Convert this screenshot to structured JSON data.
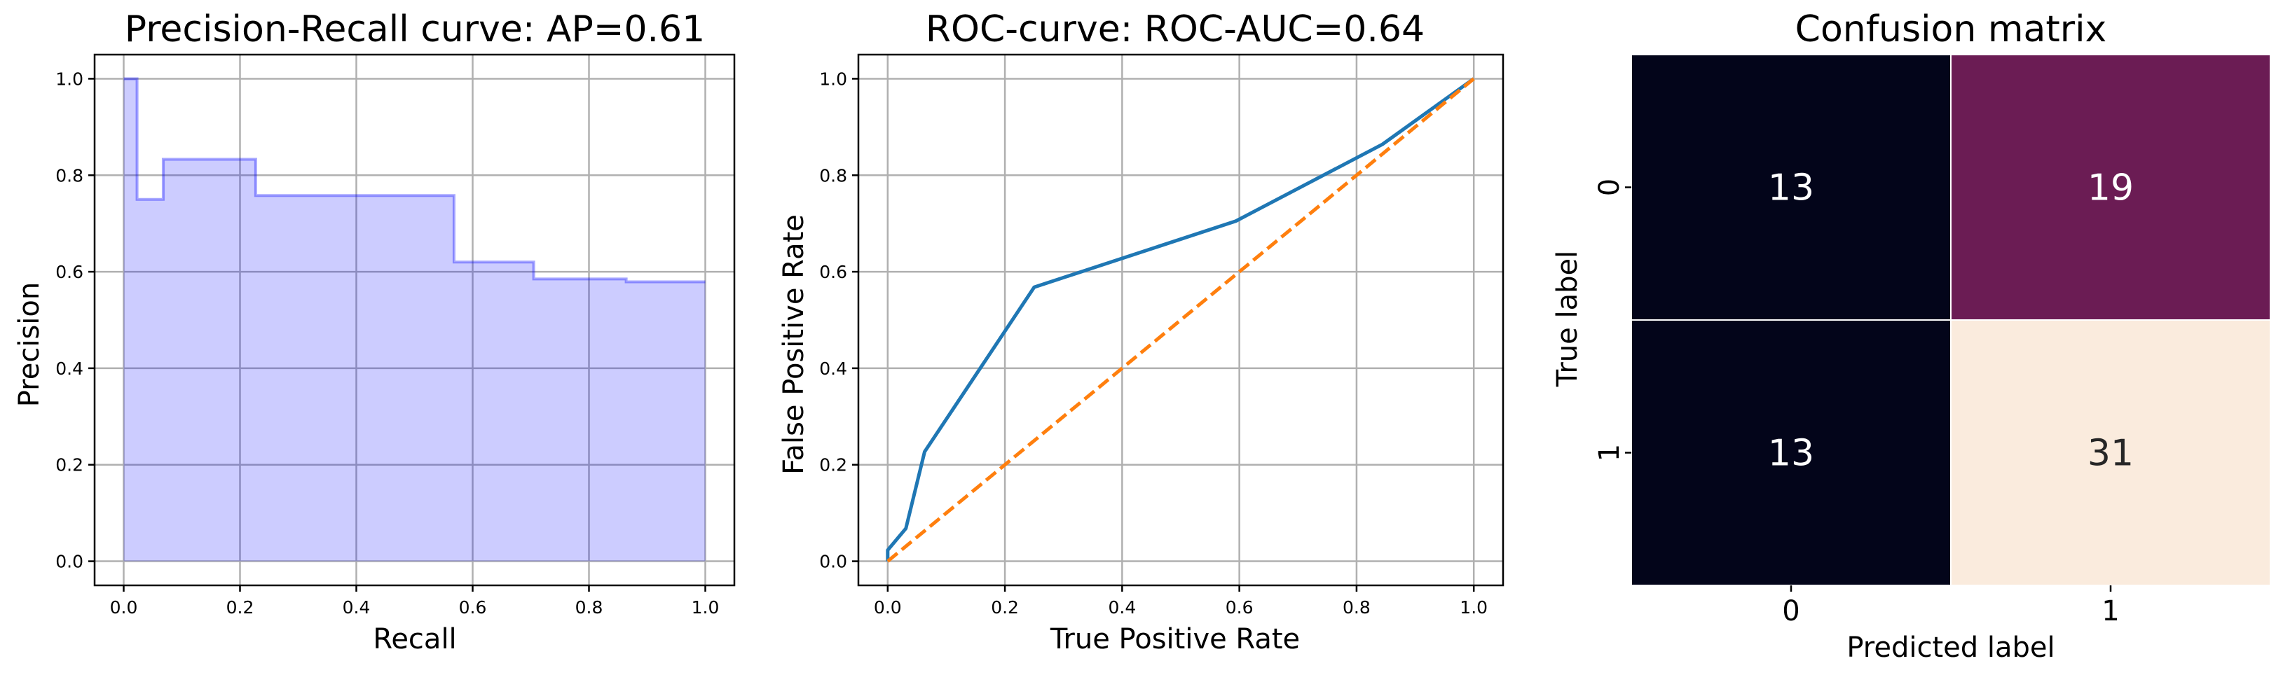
{
  "chart_data": [
    {
      "type": "area",
      "title": "Precision-Recall curve: AP=0.61",
      "xlabel": "Recall",
      "ylabel": "Precision",
      "xlim": [
        -0.05,
        1.05
      ],
      "ylim": [
        -0.05,
        1.05
      ],
      "xticks": [
        0.0,
        0.2,
        0.4,
        0.6,
        0.8,
        1.0
      ],
      "yticks": [
        0.0,
        0.2,
        0.4,
        0.6,
        0.8,
        1.0
      ],
      "grid": true,
      "step": "post",
      "x": [
        0.0,
        0.023,
        0.068,
        0.227,
        0.568,
        0.705,
        0.864,
        1.0
      ],
      "y": [
        1.0,
        0.75,
        0.833,
        0.758,
        0.62,
        0.585,
        0.579,
        0.579
      ],
      "color": "#0000ff",
      "fill_opacity": 0.2
    },
    {
      "type": "line",
      "title": "ROC-curve: ROC-AUC=0.64",
      "xlabel": "True Positive Rate",
      "ylabel": "False Positive Rate",
      "xlim": [
        -0.05,
        1.05
      ],
      "ylim": [
        -0.05,
        1.05
      ],
      "xticks": [
        0.0,
        0.2,
        0.4,
        0.6,
        0.8,
        1.0
      ],
      "yticks": [
        0.0,
        0.2,
        0.4,
        0.6,
        0.8,
        1.0
      ],
      "grid": true,
      "series": [
        {
          "x": [
            0.0,
            0.0,
            0.031,
            0.063,
            0.25,
            0.594,
            0.844,
            1.0
          ],
          "y": [
            0.0,
            0.023,
            0.068,
            0.227,
            0.568,
            0.705,
            0.864,
            1.0
          ],
          "color": "#1f77b4",
          "style": "solid"
        },
        {
          "x": [
            0.0,
            1.0
          ],
          "y": [
            0.0,
            1.0
          ],
          "color": "#ff7f0e",
          "style": "dashed"
        }
      ]
    },
    {
      "type": "heatmap",
      "title": "Confusion matrix",
      "xlabel": "Predicted label",
      "ylabel": "True label",
      "xticklabels": [
        "0",
        "1"
      ],
      "yticklabels": [
        "0",
        "1"
      ],
      "values": [
        [
          13,
          19
        ],
        [
          13,
          31
        ]
      ],
      "vmin": 13,
      "vmax": 31,
      "colormap": "rocket"
    }
  ]
}
